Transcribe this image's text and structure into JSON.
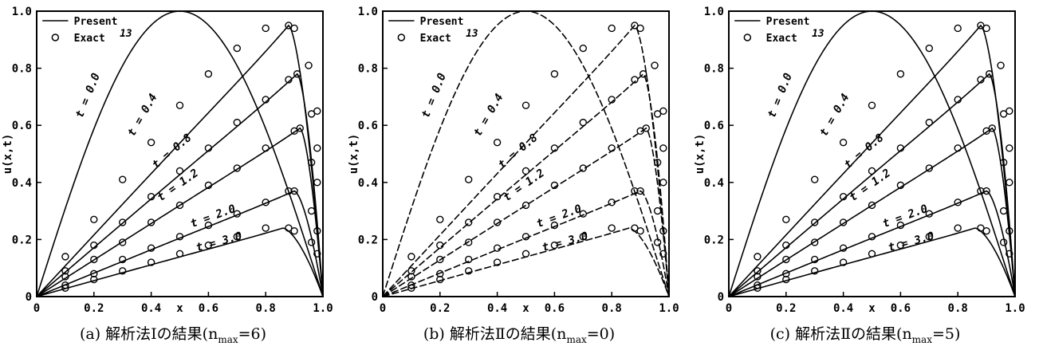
{
  "chart_data": [
    {
      "type": "line",
      "panel_label": "(a)",
      "caption": "解析法Ⅰの結果(n",
      "caption_sub": "max",
      "caption_tail": "=6)",
      "xlabel": "x",
      "ylabel": "u(x,t)",
      "xlim": [
        0,
        1
      ],
      "ylim": [
        0,
        1
      ],
      "xticks": [
        "0",
        "0.2",
        "0.4",
        "x",
        "0.6",
        "0.8",
        "1.0"
      ],
      "yticks": [
        "0",
        "0.2",
        "0.4",
        "0.6",
        "0.8",
        "1.0"
      ],
      "legend": {
        "present": "Present",
        "exact": "Exact",
        "exact_ref": "13"
      },
      "line_style": "solid",
      "curve_labels": [
        "t = 0.0",
        "t = 0.4",
        "t = 0.8",
        "t = 1.2",
        "t = 2.0",
        "t = 3.0"
      ]
    },
    {
      "type": "line",
      "panel_label": "(b)",
      "caption": "解析法Ⅱの結果(n",
      "caption_sub": "max",
      "caption_tail": "=0)",
      "xlabel": "x",
      "ylabel": "u(x,t)",
      "xlim": [
        0,
        1
      ],
      "ylim": [
        0,
        1
      ],
      "xticks": [
        "0",
        "0.2",
        "0.4",
        "x",
        "0.6",
        "0.8",
        "1.0"
      ],
      "yticks": [
        "0",
        "0.2",
        "0.4",
        "0.6",
        "0.8",
        "1.0"
      ],
      "legend": {
        "present": "Present",
        "exact": "Exact",
        "exact_ref": "13"
      },
      "line_style": "dashed",
      "curve_labels": [
        "t = 0.0",
        "t = 0.4",
        "t = 0.8",
        "t = 1.2",
        "t = 2.0",
        "t = 3.0"
      ]
    },
    {
      "type": "line",
      "panel_label": "(c)",
      "caption": "解析法Ⅱの結果(n",
      "caption_sub": "max",
      "caption_tail": "=5)",
      "xlabel": "x",
      "ylabel": "u(x,t)",
      "xlim": [
        0,
        1
      ],
      "ylim": [
        0,
        1
      ],
      "xticks": [
        "0",
        "0.2",
        "0.4",
        "x",
        "0.6",
        "0.8",
        "1.0"
      ],
      "yticks": [
        "0",
        "0.2",
        "0.4",
        "0.6",
        "0.8",
        "1.0"
      ],
      "legend": {
        "present": "Present",
        "exact": "Exact",
        "exact_ref": "13"
      },
      "line_style": "solid",
      "curve_labels": [
        "t = 0.0",
        "t = 0.4",
        "t = 0.8",
        "t = 1.2",
        "t = 2.0",
        "t = 3.0"
      ]
    }
  ],
  "series": [
    {
      "name": "t = 0.0",
      "peak_x": 0.5,
      "peak_y": 1.0,
      "points": []
    },
    {
      "name": "t = 0.4",
      "peak_x": 0.88,
      "peak_y": 0.95,
      "exact_x": [
        0.1,
        0.2,
        0.3,
        0.4,
        0.5,
        0.6,
        0.7,
        0.8,
        0.88,
        0.9,
        0.95,
        0.98
      ],
      "exact_y": [
        0.14,
        0.27,
        0.41,
        0.54,
        0.67,
        0.78,
        0.87,
        0.94,
        0.95,
        0.94,
        0.81,
        0.65
      ]
    },
    {
      "name": "t = 0.8",
      "peak_x": 0.91,
      "peak_y": 0.78,
      "exact_x": [
        0.1,
        0.2,
        0.3,
        0.4,
        0.5,
        0.6,
        0.7,
        0.8,
        0.88,
        0.91,
        0.96,
        0.98
      ],
      "exact_y": [
        0.09,
        0.18,
        0.26,
        0.35,
        0.44,
        0.52,
        0.61,
        0.69,
        0.76,
        0.78,
        0.64,
        0.52
      ]
    },
    {
      "name": "t = 1.2",
      "peak_x": 0.92,
      "peak_y": 0.59,
      "exact_x": [
        0.1,
        0.2,
        0.3,
        0.4,
        0.5,
        0.6,
        0.7,
        0.8,
        0.9,
        0.92,
        0.96,
        0.98
      ],
      "exact_y": [
        0.07,
        0.13,
        0.19,
        0.26,
        0.32,
        0.39,
        0.45,
        0.52,
        0.58,
        0.59,
        0.47,
        0.4
      ]
    },
    {
      "name": "t = 2.0",
      "peak_x": 0.9,
      "peak_y": 0.37,
      "exact_x": [
        0.1,
        0.2,
        0.3,
        0.4,
        0.5,
        0.6,
        0.7,
        0.8,
        0.88,
        0.9,
        0.96,
        0.98
      ],
      "exact_y": [
        0.04,
        0.08,
        0.13,
        0.17,
        0.21,
        0.25,
        0.29,
        0.33,
        0.37,
        0.37,
        0.3,
        0.23
      ]
    },
    {
      "name": "t = 3.0",
      "peak_x": 0.86,
      "peak_y": 0.24,
      "exact_x": [
        0.1,
        0.2,
        0.3,
        0.4,
        0.5,
        0.6,
        0.7,
        0.8,
        0.88,
        0.9,
        0.96,
        0.98
      ],
      "exact_y": [
        0.03,
        0.06,
        0.09,
        0.12,
        0.15,
        0.18,
        0.21,
        0.24,
        0.24,
        0.23,
        0.19,
        0.15
      ]
    }
  ]
}
